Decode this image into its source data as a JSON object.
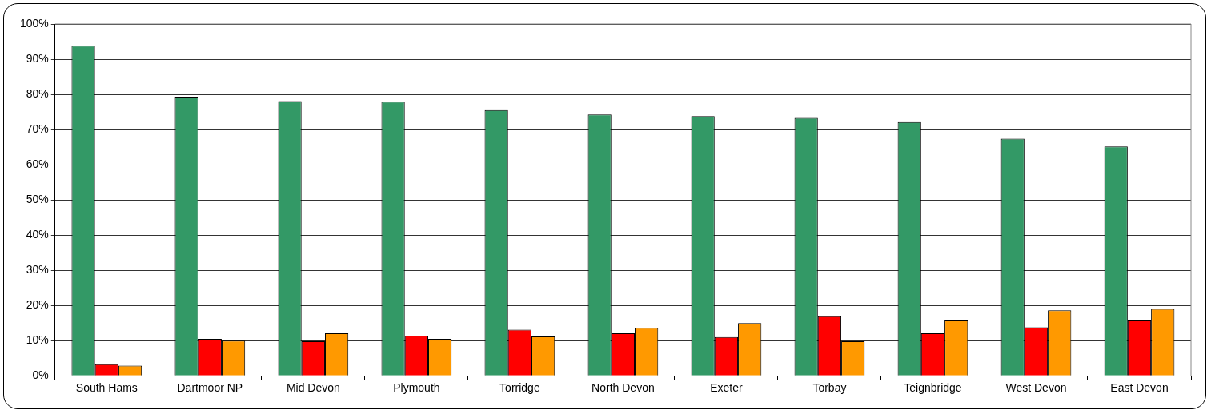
{
  "chart_data": {
    "type": "bar",
    "categories": [
      "South Hams",
      "Dartmoor NP",
      "Mid Devon",
      "Plymouth",
      "Torridge",
      "North Devon",
      "Exeter",
      "Torbay",
      "Teignbridge",
      "West Devon",
      "East Devon"
    ],
    "series": [
      {
        "color": "#339966",
        "values": [
          93.8,
          79.3,
          78.1,
          77.9,
          75.5,
          74.3,
          73.8,
          73.3,
          72.1,
          67.4,
          65.2
        ]
      },
      {
        "color": "#ff0000",
        "values": [
          3.3,
          10.5,
          9.8,
          11.4,
          13.1,
          12.1,
          11.0,
          16.9,
          12.1,
          13.8,
          15.7
        ]
      },
      {
        "color": "#ff9900",
        "values": [
          2.9,
          10.0,
          12.1,
          10.5,
          11.2,
          13.6,
          15.0,
          9.8,
          15.7,
          18.6,
          19.0
        ]
      }
    ],
    "ylim": [
      0,
      100
    ],
    "yticks": [
      {
        "value": 0,
        "label": "0%"
      },
      {
        "value": 10,
        "label": "10%"
      },
      {
        "value": 20,
        "label": "20%"
      },
      {
        "value": 30,
        "label": "30%"
      },
      {
        "value": 40,
        "label": "40%"
      },
      {
        "value": 50,
        "label": "50%"
      },
      {
        "value": 60,
        "label": "60%"
      },
      {
        "value": 70,
        "label": "70%"
      },
      {
        "value": 80,
        "label": "80%"
      },
      {
        "value": 90,
        "label": "90%"
      },
      {
        "value": 100,
        "label": "100%"
      }
    ],
    "grid": "y",
    "legend": false
  }
}
